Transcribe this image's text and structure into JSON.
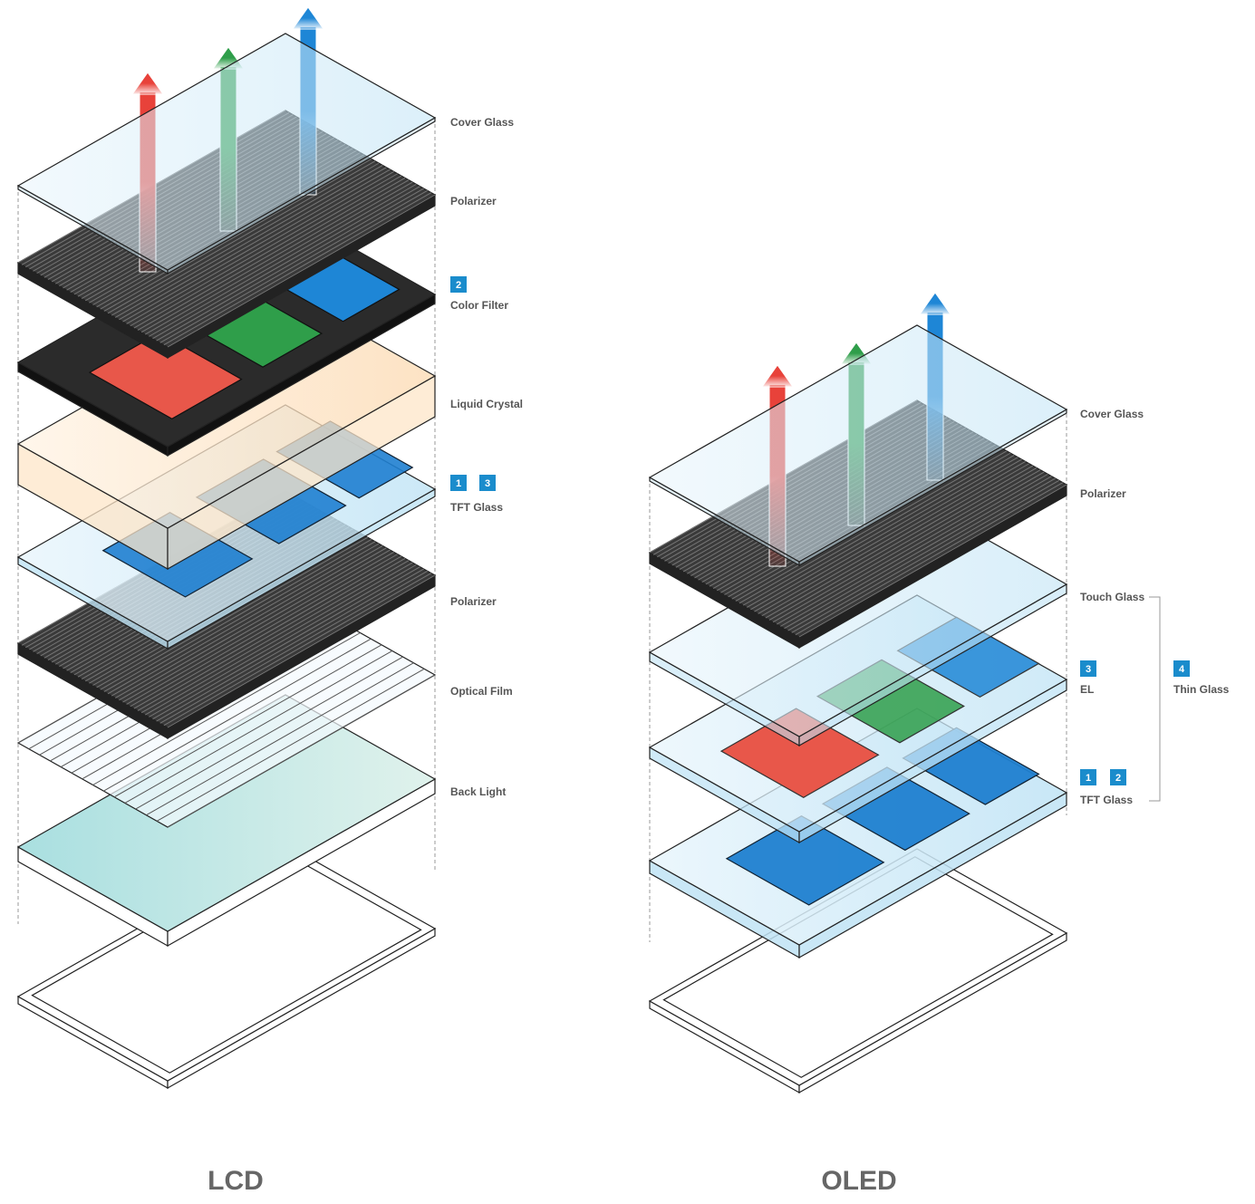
{
  "lcd": {
    "title": "LCD",
    "layers": [
      {
        "label": "Cover Glass"
      },
      {
        "label": "Polarizer"
      },
      {
        "badges": [
          "2"
        ],
        "label": "Color Filter"
      },
      {
        "label": "Liquid Crystal"
      },
      {
        "badges": [
          "1",
          "3"
        ],
        "label": "TFT Glass"
      },
      {
        "label": "Polarizer"
      },
      {
        "label": "Optical Film"
      },
      {
        "label": "Back Light"
      }
    ]
  },
  "oled": {
    "title": "OLED",
    "layers": [
      {
        "label": "Cover Glass"
      },
      {
        "label": "Polarizer"
      },
      {
        "label": "Touch Glass"
      },
      {
        "badges": [
          "3"
        ],
        "label": "EL"
      },
      {
        "badges": [
          "1",
          "2"
        ],
        "label": "TFT Glass"
      }
    ],
    "group": {
      "badge": "4",
      "label": "Thin Glass"
    }
  }
}
